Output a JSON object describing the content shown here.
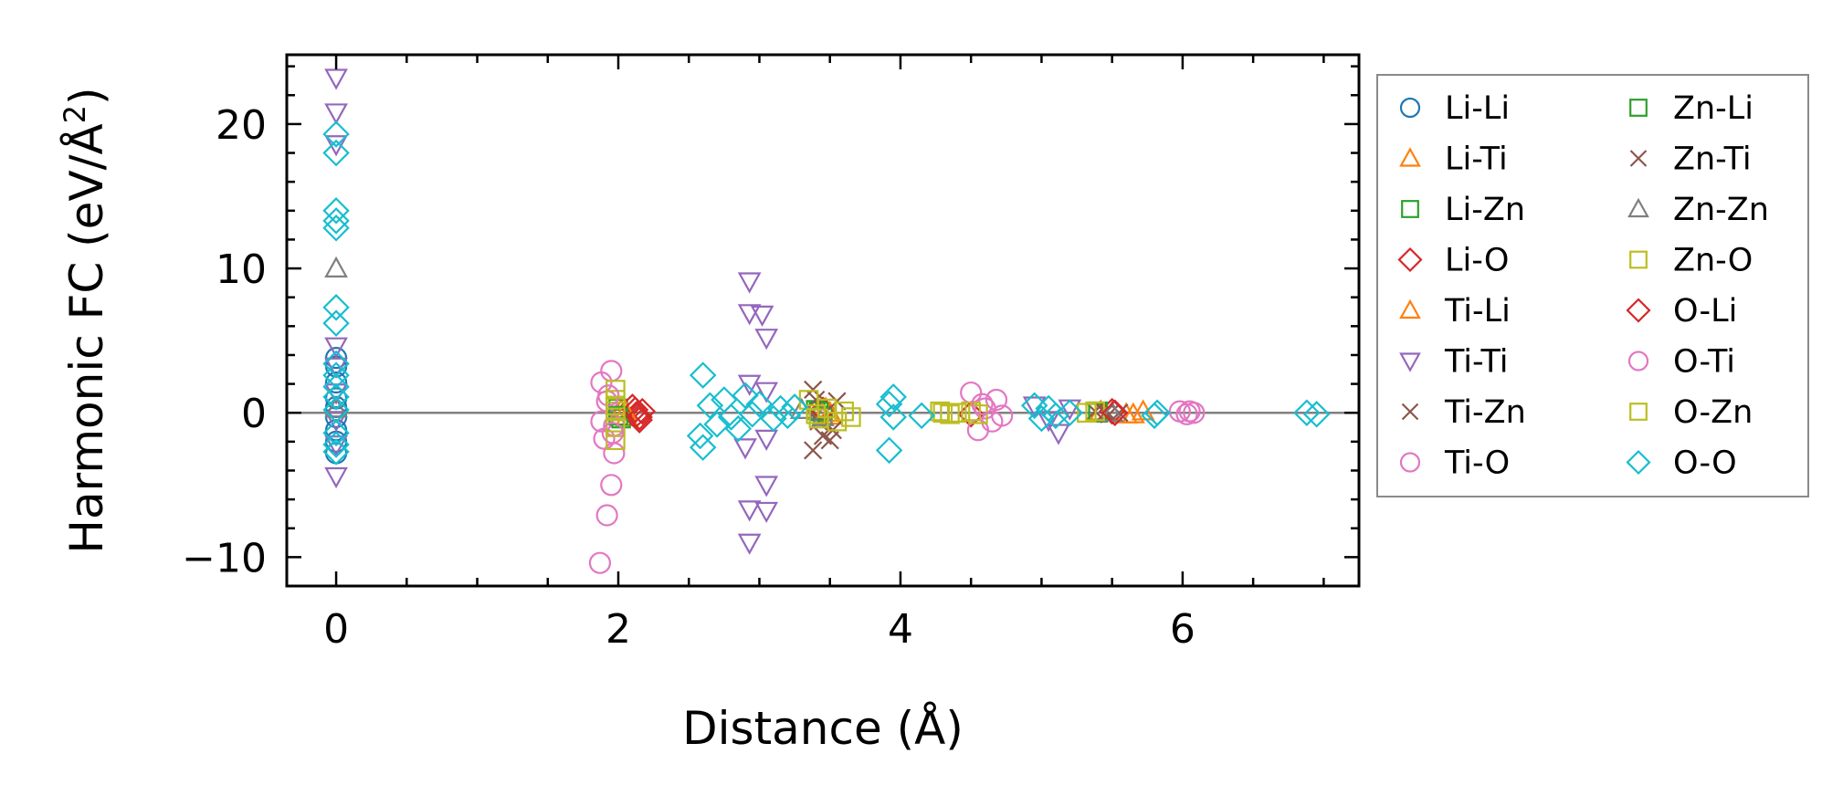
{
  "chart_data": {
    "type": "scatter",
    "title": "",
    "xlabel": "Distance (Å)",
    "ylabel_main": "Harmonic FC (eV/Å",
    "ylabel_sup": "2",
    "ylabel_close": ")",
    "xlim": [
      -0.35,
      7.25
    ],
    "ylim": [
      -12.0,
      24.8
    ],
    "xticks": [
      0,
      2,
      4,
      6
    ],
    "xtick_labels": [
      "0",
      "2",
      "4",
      "6"
    ],
    "yticks": [
      -10,
      0,
      10,
      20
    ],
    "ytick_labels": [
      "−10",
      "0",
      "10",
      "20"
    ],
    "x_minor_step": 0.5,
    "y_minor_step": 2,
    "zero_line": true,
    "grid": false,
    "legend_placement": "outside-right",
    "series": [
      {
        "name": "Li-Li",
        "marker": "circle",
        "color": "#1f77b4",
        "points": [
          [
            0,
            3.8
          ],
          [
            0,
            3.2
          ],
          [
            0,
            2.1
          ],
          [
            0,
            1.0
          ],
          [
            0,
            0.4
          ],
          [
            0,
            -0.3
          ],
          [
            0,
            -1.2
          ],
          [
            0,
            -2.0
          ],
          [
            0,
            -2.8
          ]
        ]
      },
      {
        "name": "Li-Ti",
        "marker": "triangle-up",
        "color": "#ff7f0e",
        "points": [
          [
            2.02,
            0.2
          ],
          [
            2.06,
            -0.3
          ],
          [
            3.47,
            0.3
          ],
          [
            3.5,
            -0.2
          ],
          [
            5.42,
            0.1
          ],
          [
            5.6,
            -0.1
          ],
          [
            5.72,
            0.1
          ]
        ]
      },
      {
        "name": "Li-Zn",
        "marker": "square",
        "color": "#2ca02c",
        "points": [
          [
            2.0,
            0.3
          ],
          [
            2.02,
            -0.4
          ],
          [
            3.4,
            0.2
          ],
          [
            3.45,
            -0.2
          ],
          [
            5.4,
            0.0
          ]
        ]
      },
      {
        "name": "Li-O",
        "marker": "diamond",
        "color": "#d62728",
        "points": [
          [
            2.1,
            0.4
          ],
          [
            2.13,
            -0.1
          ],
          [
            2.15,
            -0.5
          ],
          [
            2.17,
            0.1
          ],
          [
            3.45,
            0.2
          ],
          [
            4.5,
            -0.1
          ],
          [
            5.5,
            0.1
          ]
        ]
      },
      {
        "name": "Ti-Li",
        "marker": "triangle-up",
        "color": "#ff7f0e",
        "points": [
          [
            2.05,
            0.1
          ],
          [
            3.5,
            0.0
          ],
          [
            5.65,
            -0.1
          ]
        ]
      },
      {
        "name": "Ti-Ti",
        "marker": "triangle-down",
        "color": "#9467bd",
        "points": [
          [
            0,
            23.2
          ],
          [
            0,
            20.8
          ],
          [
            0,
            18.6
          ],
          [
            0,
            4.6
          ],
          [
            0,
            3.2
          ],
          [
            0,
            1.4
          ],
          [
            0,
            -0.5
          ],
          [
            0,
            -2.2
          ],
          [
            0,
            -4.4
          ],
          [
            2.93,
            9.1
          ],
          [
            2.93,
            6.9
          ],
          [
            3.02,
            6.8
          ],
          [
            3.05,
            5.2
          ],
          [
            2.93,
            2.0
          ],
          [
            3.05,
            1.5
          ],
          [
            2.9,
            -2.4
          ],
          [
            3.05,
            -1.8
          ],
          [
            3.05,
            -5.0
          ],
          [
            2.93,
            -6.7
          ],
          [
            3.05,
            -6.8
          ],
          [
            2.93,
            -9.0
          ],
          [
            4.95,
            0.5
          ],
          [
            5.05,
            -0.5
          ],
          [
            5.12,
            -1.4
          ],
          [
            5.2,
            0.3
          ]
        ]
      },
      {
        "name": "Ti-Zn",
        "marker": "x",
        "color": "#8c564b",
        "points": [
          [
            3.38,
            1.6
          ],
          [
            3.42,
            -0.6
          ],
          [
            3.45,
            -1.6
          ],
          [
            3.38,
            -2.6
          ],
          [
            3.5,
            -1.9
          ],
          [
            3.55,
            0.8
          ],
          [
            5.38,
            0.1
          ],
          [
            5.48,
            -0.1
          ],
          [
            5.55,
            0.0
          ]
        ]
      },
      {
        "name": "Ti-O",
        "marker": "circle",
        "color": "#e377c2",
        "points": [
          [
            1.87,
            -10.4
          ],
          [
            1.92,
            -7.1
          ],
          [
            1.95,
            -5.0
          ],
          [
            1.88,
            2.1
          ],
          [
            1.95,
            2.9
          ],
          [
            1.9,
            -1.8
          ],
          [
            1.97,
            -2.8
          ],
          [
            1.88,
            -0.6
          ],
          [
            1.92,
            0.8
          ],
          [
            1.97,
            -0.9
          ],
          [
            4.5,
            1.4
          ],
          [
            4.55,
            -1.2
          ],
          [
            4.6,
            0.3
          ],
          [
            4.65,
            -0.6
          ],
          [
            4.68,
            0.9
          ],
          [
            4.72,
            -0.2
          ],
          [
            5.98,
            0.1
          ],
          [
            6.03,
            -0.1
          ],
          [
            6.08,
            0.0
          ]
        ]
      },
      {
        "name": "Zn-Li",
        "marker": "square",
        "color": "#2ca02c",
        "points": [
          [
            2.0,
            -0.2
          ],
          [
            3.42,
            0.1
          ],
          [
            5.4,
            0.1
          ]
        ]
      },
      {
        "name": "Zn-Ti",
        "marker": "x",
        "color": "#8c564b",
        "points": [
          [
            3.4,
            0.9
          ],
          [
            3.52,
            -1.2
          ],
          [
            5.45,
            0.0
          ]
        ]
      },
      {
        "name": "Zn-Zn",
        "marker": "triangle-up",
        "color": "#7f7f7f",
        "points": [
          [
            0,
            10.0
          ],
          [
            0,
            0.3
          ],
          [
            3.3,
            0.2
          ],
          [
            3.45,
            -0.3
          ],
          [
            5.5,
            0.0
          ]
        ]
      },
      {
        "name": "Zn-O",
        "marker": "square",
        "color": "#bcbd22",
        "points": [
          [
            1.98,
            1.6
          ],
          [
            1.98,
            0.9
          ],
          [
            1.98,
            0.1
          ],
          [
            1.98,
            -1.0
          ],
          [
            1.98,
            -1.9
          ],
          [
            3.35,
            0.9
          ],
          [
            3.42,
            -0.4
          ],
          [
            3.48,
            0.3
          ],
          [
            3.55,
            -0.6
          ],
          [
            3.6,
            0.1
          ],
          [
            3.65,
            -0.3
          ],
          [
            4.28,
            0.1
          ],
          [
            4.35,
            -0.1
          ],
          [
            4.4,
            0.0
          ],
          [
            4.5,
            0.1
          ],
          [
            4.55,
            -0.1
          ],
          [
            5.32,
            0.0
          ],
          [
            5.38,
            0.1
          ]
        ]
      },
      {
        "name": "O-Li",
        "marker": "diamond",
        "color": "#d62728",
        "points": [
          [
            2.12,
            0.2
          ],
          [
            2.15,
            -0.3
          ],
          [
            5.52,
            0.0
          ]
        ]
      },
      {
        "name": "O-Ti",
        "marker": "circle",
        "color": "#e377c2",
        "points": [
          [
            1.93,
            1.2
          ],
          [
            1.96,
            -1.4
          ],
          [
            4.58,
            0.6
          ],
          [
            6.05,
            0.1
          ]
        ]
      },
      {
        "name": "O-Zn",
        "marker": "square",
        "color": "#bcbd22",
        "points": [
          [
            1.98,
            0.5
          ],
          [
            3.4,
            -0.1
          ],
          [
            4.3,
            0.0
          ]
        ]
      },
      {
        "name": "O-O",
        "marker": "diamond",
        "color": "#17becf",
        "points": [
          [
            0,
            19.3
          ],
          [
            0,
            18.0
          ],
          [
            0,
            14.0
          ],
          [
            0,
            13.3
          ],
          [
            0,
            12.8
          ],
          [
            0,
            7.3
          ],
          [
            0,
            6.2
          ],
          [
            0,
            3.4
          ],
          [
            0,
            2.6
          ],
          [
            0,
            1.8
          ],
          [
            0,
            1.1
          ],
          [
            0,
            0.2
          ],
          [
            0,
            -1.4
          ],
          [
            0,
            -2.2
          ],
          [
            0,
            -2.7
          ],
          [
            2.6,
            2.6
          ],
          [
            2.58,
            -1.6
          ],
          [
            2.6,
            -2.4
          ],
          [
            2.65,
            0.5
          ],
          [
            2.7,
            -0.8
          ],
          [
            2.75,
            0.9
          ],
          [
            2.8,
            -0.3
          ],
          [
            2.85,
            -1.1
          ],
          [
            2.9,
            1.2
          ],
          [
            2.95,
            -0.1
          ],
          [
            3.0,
            0.6
          ],
          [
            3.1,
            -0.4
          ],
          [
            3.15,
            0.3
          ],
          [
            3.2,
            -0.2
          ],
          [
            3.25,
            0.4
          ],
          [
            3.92,
            0.6
          ],
          [
            3.95,
            -0.3
          ],
          [
            3.92,
            -2.6
          ],
          [
            3.95,
            1.1
          ],
          [
            4.15,
            -0.2
          ],
          [
            4.95,
            0.5
          ],
          [
            5.0,
            -0.4
          ],
          [
            5.05,
            0.3
          ],
          [
            5.1,
            -0.2
          ],
          [
            5.2,
            0.0
          ],
          [
            5.8,
            -0.2
          ],
          [
            5.82,
            0.0
          ],
          [
            6.88,
            0.0
          ],
          [
            6.95,
            -0.1
          ]
        ]
      }
    ]
  }
}
